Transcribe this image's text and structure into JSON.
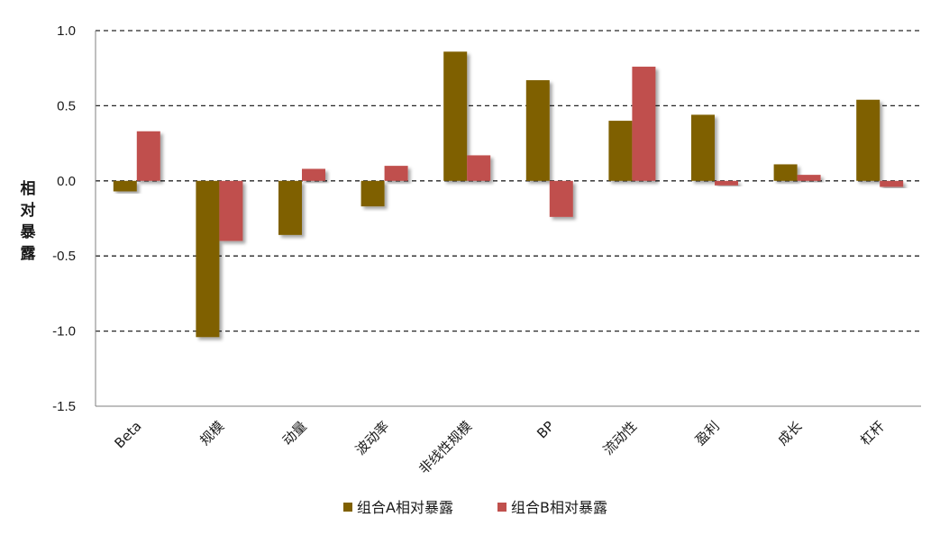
{
  "chart_data": {
    "type": "bar",
    "title": "",
    "xlabel": "",
    "ylabel": "相对暴露",
    "ylim": [
      -1.5,
      1.0
    ],
    "yticks": [
      1.0,
      0.5,
      0.0,
      -0.5,
      -1.0,
      -1.5
    ],
    "ytick_labels": [
      "1.0",
      "0.5",
      "0.0",
      "-0.5",
      "-1.0",
      "-1.5"
    ],
    "grid": "horizontal-dashed",
    "legend_position": "bottom-center",
    "categories": [
      "Beta",
      "规模",
      "动量",
      "波动率",
      "非线性规模",
      "BP",
      "流动性",
      "盈利",
      "成长",
      "杠杆"
    ],
    "series": [
      {
        "name": "组合A相对暴露",
        "color": "#7f6000",
        "values": [
          -0.07,
          -1.04,
          -0.36,
          -0.17,
          0.86,
          0.67,
          0.4,
          0.44,
          0.11,
          0.54
        ]
      },
      {
        "name": "组合B相对暴露",
        "color": "#c0504d",
        "values": [
          0.33,
          -0.4,
          0.08,
          0.1,
          0.17,
          -0.24,
          0.76,
          -0.03,
          0.04,
          -0.04
        ]
      }
    ]
  }
}
